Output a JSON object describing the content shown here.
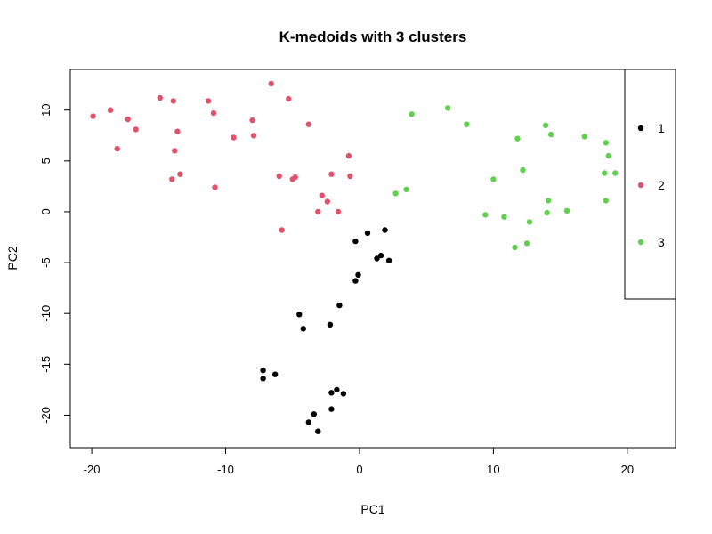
{
  "chart_data": {
    "type": "scatter",
    "title": "K-medoids with 3 clusters",
    "xlabel": "PC1",
    "ylabel": "PC2",
    "xlim": [
      -21.6,
      23.6
    ],
    "ylim": [
      -23.2,
      14
    ],
    "xticks": [
      -20,
      -10,
      0,
      10,
      20
    ],
    "yticks": [
      -20,
      -15,
      -10,
      -5,
      0,
      5,
      10
    ],
    "grid": false,
    "legend_position": "right",
    "series": [
      {
        "name": "1",
        "color": "#000000",
        "points": [
          [
            -7.2,
            -15.6
          ],
          [
            -7.2,
            -16.4
          ],
          [
            -6.3,
            -16.0
          ],
          [
            -4.5,
            -10.1
          ],
          [
            -4.2,
            -11.5
          ],
          [
            -2.2,
            -11.1
          ],
          [
            -1.5,
            -9.2
          ],
          [
            -0.3,
            -6.8
          ],
          [
            -0.1,
            -6.2
          ],
          [
            -0.3,
            -2.9
          ],
          [
            0.6,
            -2.1
          ],
          [
            1.3,
            -4.6
          ],
          [
            1.6,
            -4.3
          ],
          [
            1.9,
            -1.8
          ],
          [
            2.2,
            -4.8
          ],
          [
            -2.1,
            -17.8
          ],
          [
            -1.7,
            -17.5
          ],
          [
            -1.2,
            -17.9
          ],
          [
            -2.1,
            -19.4
          ],
          [
            -3.4,
            -19.9
          ],
          [
            -3.8,
            -20.7
          ],
          [
            -3.1,
            -21.6
          ]
        ]
      },
      {
        "name": "2",
        "color": "#DF536B",
        "points": [
          [
            -19.9,
            9.4
          ],
          [
            -18.6,
            10.0
          ],
          [
            -17.3,
            9.1
          ],
          [
            -16.7,
            8.1
          ],
          [
            -18.1,
            6.2
          ],
          [
            -14.9,
            11.2
          ],
          [
            -13.9,
            10.9
          ],
          [
            -13.6,
            7.9
          ],
          [
            -13.8,
            6.0
          ],
          [
            -14.0,
            3.2
          ],
          [
            -13.4,
            3.7
          ],
          [
            -11.3,
            10.9
          ],
          [
            -10.9,
            9.7
          ],
          [
            -10.8,
            2.4
          ],
          [
            -9.4,
            7.3
          ],
          [
            -8.0,
            9.0
          ],
          [
            -7.9,
            7.5
          ],
          [
            -6.6,
            12.6
          ],
          [
            -5.3,
            11.1
          ],
          [
            -6.0,
            3.5
          ],
          [
            -5.0,
            3.2
          ],
          [
            -4.8,
            3.4
          ],
          [
            -5.8,
            -1.8
          ],
          [
            -3.8,
            8.6
          ],
          [
            -2.1,
            3.7
          ],
          [
            -2.8,
            1.6
          ],
          [
            -2.4,
            1.0
          ],
          [
            -3.1,
            0.0
          ],
          [
            -1.6,
            0.0
          ],
          [
            -0.8,
            5.5
          ],
          [
            -0.7,
            3.5
          ]
        ]
      },
      {
        "name": "3",
        "color": "#61D04F",
        "points": [
          [
            3.9,
            9.6
          ],
          [
            6.6,
            10.2
          ],
          [
            8.0,
            8.6
          ],
          [
            2.7,
            1.8
          ],
          [
            3.5,
            2.2
          ],
          [
            9.4,
            -0.3
          ],
          [
            10.0,
            3.2
          ],
          [
            10.8,
            -0.5
          ],
          [
            11.8,
            7.2
          ],
          [
            12.2,
            4.1
          ],
          [
            11.6,
            -3.5
          ],
          [
            12.5,
            -3.1
          ],
          [
            12.7,
            -1.0
          ],
          [
            13.9,
            8.5
          ],
          [
            14.3,
            7.6
          ],
          [
            14.1,
            1.1
          ],
          [
            14.0,
            -0.1
          ],
          [
            15.5,
            0.1
          ],
          [
            16.8,
            7.4
          ],
          [
            18.4,
            6.8
          ],
          [
            18.6,
            5.5
          ],
          [
            18.3,
            3.8
          ],
          [
            19.1,
            3.8
          ],
          [
            18.4,
            1.1
          ]
        ]
      }
    ]
  }
}
